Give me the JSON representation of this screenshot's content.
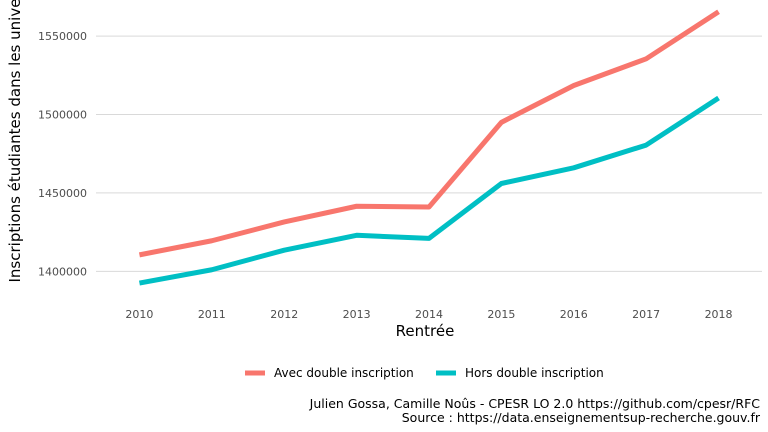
{
  "chart_data": {
    "type": "line",
    "xlabel": "Rentrée",
    "ylabel": "Inscriptions étudiantes dans les universités",
    "x": [
      2010,
      2011,
      2012,
      2013,
      2014,
      2015,
      2016,
      2017,
      2018
    ],
    "x_ticks": [
      "2010",
      "2011",
      "2012",
      "2013",
      "2014",
      "2015",
      "2016",
      "2017",
      "2018"
    ],
    "y_ticks": [
      1400000,
      1450000,
      1500000,
      1550000
    ],
    "y_tick_labels": [
      "1400000",
      "1450000",
      "1500000",
      "1550000"
    ],
    "ylim": [
      1383000,
      1573000
    ],
    "grid": true,
    "legend_position": "bottom",
    "series": [
      {
        "name": "Avec double inscription",
        "color": "#F8766D",
        "values": [
          1410500,
          1419500,
          1431500,
          1441500,
          1441000,
          1495000,
          1518500,
          1535500,
          1565500
        ]
      },
      {
        "name": "Hors double inscription",
        "color": "#00BFC4",
        "values": [
          1392500,
          1401000,
          1413500,
          1423000,
          1421000,
          1456000,
          1466000,
          1480500,
          1510500
        ]
      }
    ],
    "caption": [
      "Julien Gossa, Camille Noûs - CPESR LO 2.0 https://github.com/cpesr/RFC",
      "Source : https://data.enseignementsup-recherche.gouv.fr"
    ]
  }
}
